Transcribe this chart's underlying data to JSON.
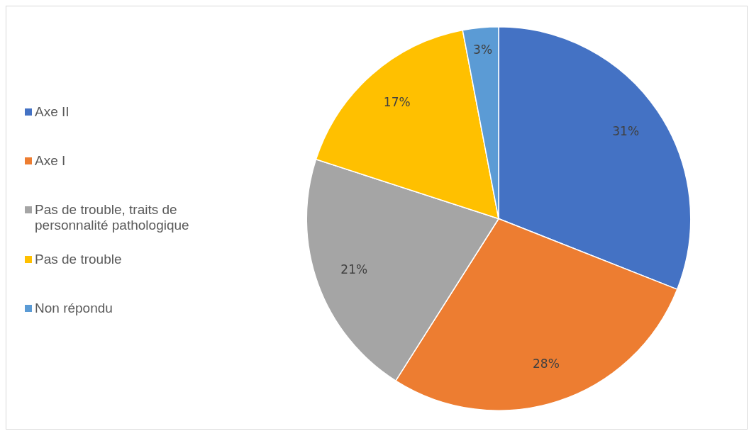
{
  "chart_data": {
    "type": "pie",
    "categories": [
      "Axe II",
      "Axe I",
      "Pas de trouble, traits de personnalité pathologique",
      "Pas de trouble",
      "Non répondu"
    ],
    "values": [
      31,
      28,
      21,
      17,
      3
    ],
    "colors": [
      "#4472c4",
      "#ed7d31",
      "#a5a5a5",
      "#ffc000",
      "#5b9bd5"
    ],
    "value_labels": [
      "31%",
      "28%",
      "21%",
      "17%",
      "3%"
    ],
    "legend": "left"
  }
}
